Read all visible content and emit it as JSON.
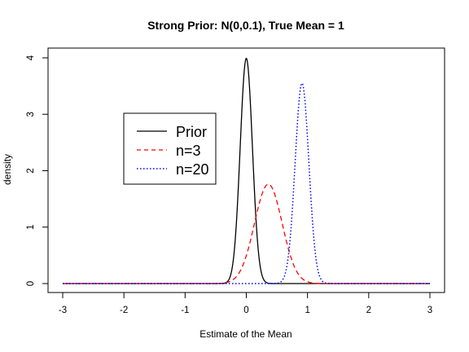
{
  "chart_data": {
    "type": "line",
    "title": "Strong Prior: N(0,0.1), True Mean = 1",
    "xlabel": "Estimate of the Mean",
    "ylabel": "density",
    "xlim": [
      -3,
      3
    ],
    "ylim": [
      0,
      4
    ],
    "x_ticks": [
      -3,
      -2,
      -1,
      0,
      1,
      2,
      3
    ],
    "y_ticks": [
      0,
      1,
      2,
      3,
      4
    ],
    "x_tick_labels": [
      "-3",
      "-2",
      "-1",
      "0",
      "1",
      "2",
      "3"
    ],
    "y_tick_labels": [
      "0",
      "1",
      "2",
      "3",
      "4"
    ],
    "grid": false,
    "legend_placement": "upper-left",
    "series": [
      {
        "name": "Prior",
        "mean": 0.0,
        "sd": 0.1,
        "peak_density": 3.99,
        "color": "#000000",
        "line_style": "solid"
      },
      {
        "name": "n=3",
        "mean": 0.36,
        "sd": 0.226,
        "peak_density": 1.76,
        "color": "#ff0000",
        "line_style": "dashed"
      },
      {
        "name": "n=20",
        "mean": 0.91,
        "sd": 0.112,
        "peak_density": 3.55,
        "color": "#0000ff",
        "line_style": "dotted"
      }
    ]
  }
}
